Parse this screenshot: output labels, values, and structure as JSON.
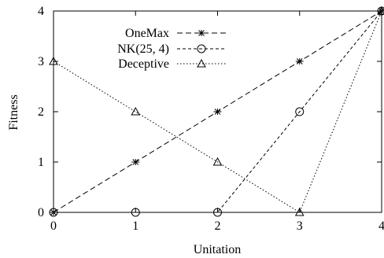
{
  "chart_data": {
    "type": "line",
    "xlabel": "Unitation",
    "ylabel": "Fitness",
    "xlim": [
      0,
      4
    ],
    "ylim": [
      0,
      4
    ],
    "xticks": [
      "0",
      "1",
      "2",
      "3",
      "4"
    ],
    "yticks": [
      "0",
      "1",
      "2",
      "3",
      "4"
    ],
    "grid": false,
    "legend_position": "top-left",
    "x": [
      0,
      1,
      2,
      3,
      4
    ],
    "series": [
      {
        "name": "OneMax",
        "values": [
          0,
          1,
          2,
          3,
          4
        ],
        "marker": "asterisk",
        "dash": "dashed",
        "color": "#000000"
      },
      {
        "name": "NK(25, 4)",
        "values": [
          0,
          0,
          0,
          2,
          4
        ],
        "marker": "circle",
        "dash": "short-dash",
        "color": "#000000"
      },
      {
        "name": "Deceptive",
        "values": [
          3,
          2,
          1,
          0,
          4
        ],
        "marker": "triangle",
        "dash": "dotted",
        "color": "#000000"
      }
    ]
  }
}
